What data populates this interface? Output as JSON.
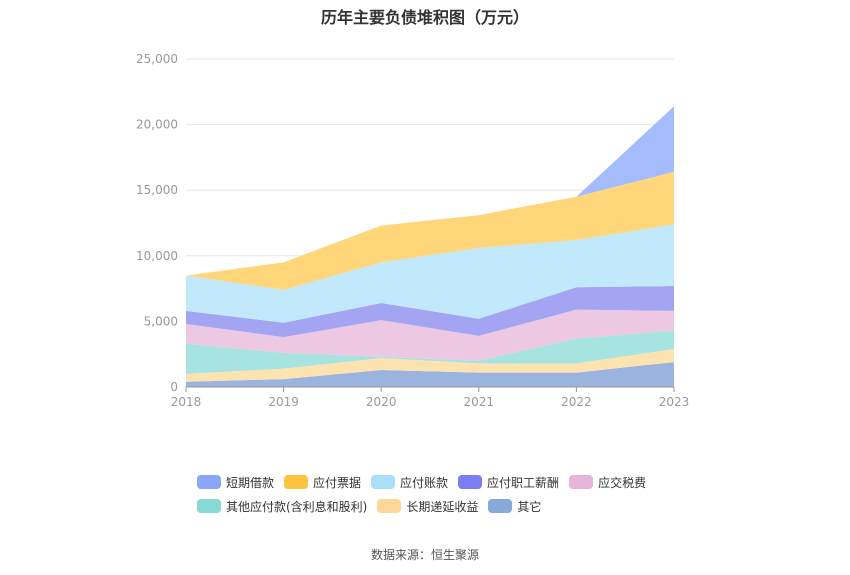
{
  "chart_data": {
    "type": "area",
    "stacked": true,
    "title": "历年主要负债堆积图（万元）",
    "x": [
      "2018",
      "2019",
      "2020",
      "2021",
      "2022",
      "2023"
    ],
    "ylim": [
      0,
      25000
    ],
    "yticks": [
      0,
      5000,
      10000,
      15000,
      20000,
      25000
    ],
    "ytick_labels": [
      "0",
      "5,000",
      "10,000",
      "15,000",
      "20,000",
      "25,000"
    ],
    "grid": true,
    "legend_position": "bottom",
    "series": [
      {
        "name": "其它",
        "color": "#9bb4df",
        "values": [
          400,
          600,
          1300,
          1100,
          1100,
          1900
        ]
      },
      {
        "name": "长期递延收益",
        "color": "#fde3b0",
        "values": [
          600,
          800,
          900,
          700,
          700,
          1000
        ]
      },
      {
        "name": "其他应付款(含利息和股利)",
        "color": "#a7e3e0",
        "values": [
          2300,
          1200,
          100,
          200,
          1900,
          1400
        ]
      },
      {
        "name": "应交税费",
        "color": "#ecc8e2",
        "values": [
          1500,
          1200,
          2800,
          1900,
          2200,
          1500
        ]
      },
      {
        "name": "应付职工薪酬",
        "color": "#a3a5f3",
        "values": [
          1000,
          1100,
          1300,
          1300,
          1700,
          1900
        ]
      },
      {
        "name": "应付账款",
        "color": "#c2e8fb",
        "values": [
          2700,
          2500,
          3100,
          5400,
          3600,
          4700
        ]
      },
      {
        "name": "应付票据",
        "color": "#ffd67a",
        "values": [
          0,
          2100,
          2800,
          2500,
          3300,
          4000
        ]
      },
      {
        "name": "短期借款",
        "color": "#a4bcfb",
        "values": [
          0,
          0,
          0,
          0,
          0,
          5000
        ]
      }
    ]
  },
  "legend": {
    "rows": [
      [
        {
          "name": "短期借款",
          "color": "#8aa6f7"
        },
        {
          "name": "应付票据",
          "color": "#ffc43f"
        },
        {
          "name": "应付账款",
          "color": "#a9dffa"
        },
        {
          "name": "应付职工薪酬",
          "color": "#7b7ef0"
        },
        {
          "name": "应交税费",
          "color": "#e6b4db"
        }
      ],
      [
        {
          "name": "其他应付款(含利息和股利)",
          "color": "#86d9d5"
        },
        {
          "name": "长期递延收益",
          "color": "#fdd79a"
        },
        {
          "name": "其它",
          "color": "#88a8da"
        }
      ]
    ]
  },
  "source": "数据来源：恒生聚源"
}
